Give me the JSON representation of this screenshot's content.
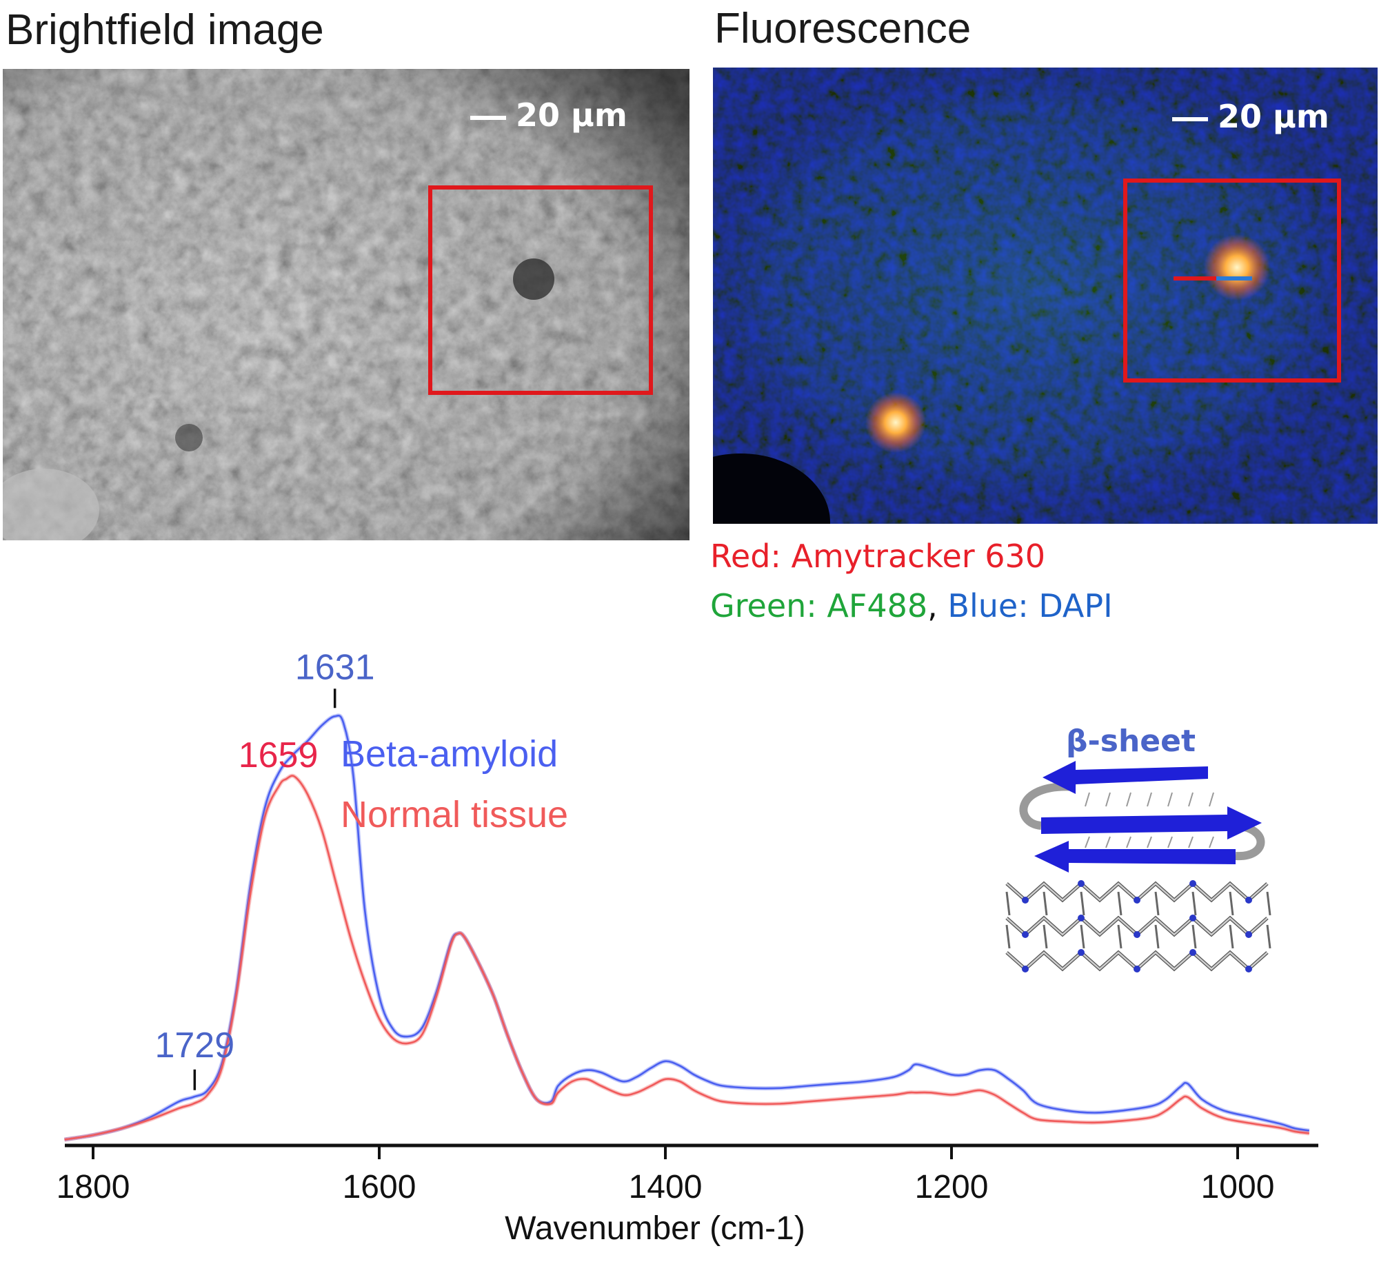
{
  "panels": {
    "brightfield": {
      "title": "Brightfield image",
      "scale_label": "20 μm"
    },
    "fluorescence": {
      "title": "Fluorescence",
      "scale_label": "20 μm"
    }
  },
  "stain_legend": {
    "red": {
      "text": "Red: Amytracker 630",
      "color": "#e8202a"
    },
    "green": {
      "text": "Green: AF488",
      "color": "#1fa53a"
    },
    "separator": ", ",
    "blue": {
      "text": "Blue: DAPI",
      "color": "#1f63c9"
    }
  },
  "structure_label": "β-sheet",
  "colors": {
    "beta": "#4a5ff0",
    "normal": "#f05a5a",
    "peak_beta": "#4a64c8",
    "peak_normal": "#e8254a",
    "box": "#e0181c"
  },
  "chart_data": {
    "type": "line",
    "xlabel": "Wavenumber (cm-1)",
    "xlim": [
      1800,
      950
    ],
    "x_ticks": [
      1800,
      1600,
      1400,
      1200,
      1000
    ],
    "ylim": [
      0,
      1.0
    ],
    "grid": false,
    "legend_placement": "top-center",
    "series": [
      {
        "name": "Beta-amyloid",
        "x": [
          1820,
          1800,
          1780,
          1760,
          1740,
          1730,
          1720,
          1710,
          1700,
          1690,
          1680,
          1670,
          1660,
          1650,
          1640,
          1631,
          1625,
          1618,
          1610,
          1600,
          1590,
          1580,
          1570,
          1560,
          1550,
          1545,
          1540,
          1530,
          1520,
          1510,
          1500,
          1490,
          1480,
          1475,
          1465,
          1455,
          1445,
          1430,
          1420,
          1410,
          1400,
          1390,
          1380,
          1370,
          1360,
          1340,
          1320,
          1300,
          1280,
          1260,
          1240,
          1230,
          1225,
          1215,
          1200,
          1190,
          1180,
          1170,
          1160,
          1150,
          1140,
          1120,
          1100,
          1080,
          1060,
          1050,
          1040,
          1035,
          1025,
          1010,
          990,
          970,
          960,
          950
        ],
        "y": [
          0.01,
          0.02,
          0.035,
          0.06,
          0.095,
          0.105,
          0.12,
          0.18,
          0.34,
          0.58,
          0.75,
          0.83,
          0.87,
          0.9,
          0.935,
          0.955,
          0.94,
          0.82,
          0.52,
          0.33,
          0.255,
          0.24,
          0.26,
          0.34,
          0.45,
          0.47,
          0.46,
          0.4,
          0.33,
          0.24,
          0.16,
          0.1,
          0.095,
          0.13,
          0.155,
          0.165,
          0.16,
          0.14,
          0.15,
          0.17,
          0.185,
          0.175,
          0.155,
          0.14,
          0.13,
          0.125,
          0.125,
          0.13,
          0.135,
          0.14,
          0.15,
          0.165,
          0.178,
          0.17,
          0.155,
          0.155,
          0.165,
          0.165,
          0.145,
          0.12,
          0.09,
          0.075,
          0.07,
          0.075,
          0.085,
          0.1,
          0.128,
          0.135,
          0.1,
          0.075,
          0.06,
          0.045,
          0.035,
          0.03
        ]
      },
      {
        "name": "Normal tissue",
        "x": [
          1820,
          1800,
          1780,
          1760,
          1740,
          1730,
          1720,
          1710,
          1700,
          1690,
          1680,
          1670,
          1665,
          1659,
          1650,
          1640,
          1630,
          1620,
          1610,
          1600,
          1590,
          1580,
          1570,
          1560,
          1550,
          1545,
          1540,
          1530,
          1520,
          1510,
          1500,
          1490,
          1480,
          1475,
          1465,
          1455,
          1445,
          1430,
          1420,
          1410,
          1400,
          1390,
          1380,
          1370,
          1360,
          1340,
          1320,
          1300,
          1280,
          1260,
          1240,
          1230,
          1225,
          1215,
          1200,
          1190,
          1180,
          1170,
          1160,
          1150,
          1140,
          1120,
          1100,
          1080,
          1060,
          1050,
          1040,
          1035,
          1025,
          1010,
          990,
          970,
          960,
          950
        ],
        "y": [
          0.01,
          0.02,
          0.035,
          0.055,
          0.08,
          0.09,
          0.11,
          0.17,
          0.33,
          0.56,
          0.73,
          0.8,
          0.815,
          0.82,
          0.78,
          0.7,
          0.58,
          0.46,
          0.36,
          0.28,
          0.235,
          0.225,
          0.245,
          0.33,
          0.445,
          0.47,
          0.46,
          0.4,
          0.33,
          0.24,
          0.16,
          0.1,
          0.09,
          0.115,
          0.14,
          0.145,
          0.13,
          0.11,
          0.115,
          0.13,
          0.145,
          0.14,
          0.12,
          0.105,
          0.095,
          0.09,
          0.09,
          0.095,
          0.1,
          0.105,
          0.11,
          0.115,
          0.115,
          0.115,
          0.11,
          0.115,
          0.12,
          0.11,
          0.09,
          0.07,
          0.055,
          0.05,
          0.048,
          0.052,
          0.06,
          0.075,
          0.1,
          0.105,
          0.08,
          0.058,
          0.046,
          0.036,
          0.028,
          0.024
        ]
      }
    ],
    "annotations": [
      {
        "x": 1631,
        "label": "1631",
        "series": "Beta-amyloid"
      },
      {
        "x": 1659,
        "label": "1659",
        "series": "Normal tissue"
      },
      {
        "x": 1729,
        "label": "1729",
        "series": "Beta-amyloid"
      }
    ]
  }
}
